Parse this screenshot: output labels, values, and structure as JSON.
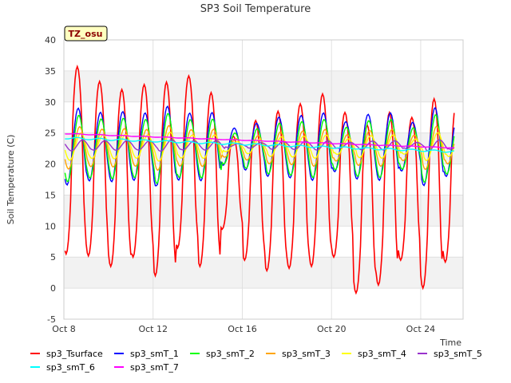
{
  "chart_data": {
    "type": "line",
    "title": "SP3 Soil Temperature",
    "xlabel": "Time",
    "ylabel": "Soil Temperature (C)",
    "ylim": [
      -5,
      40
    ],
    "xlim_days": [
      0,
      17.9
    ],
    "yticks": [
      -5,
      0,
      5,
      10,
      15,
      20,
      25,
      30,
      35,
      40
    ],
    "xticks": [
      {
        "day": 0,
        "label": "Oct 8"
      },
      {
        "day": 4,
        "label": "Oct 12"
      },
      {
        "day": 8,
        "label": "Oct 16"
      },
      {
        "day": 12,
        "label": "Oct 20"
      },
      {
        "day": 16,
        "label": "Oct 24"
      }
    ],
    "badge": "TZ_osu",
    "grid": true,
    "legend_position": "bottom",
    "day_range": [
      0.05,
      17.5
    ],
    "sample_step_days": 0.05,
    "daily_min": [
      5.5,
      5.2,
      3.5,
      5.0,
      2.0,
      6.5,
      3.5,
      9.5,
      4.5,
      2.8,
      3.2,
      3.5,
      5.0,
      -0.8,
      0.5,
      4.5,
      0.0,
      4.2
    ],
    "daily_max": [
      35.7,
      33.3,
      32.0,
      32.8,
      33.2,
      34.2,
      31.5,
      24.5,
      27.0,
      28.5,
      29.7,
      31.3,
      28.3,
      26.3,
      28.3,
      27.5,
      30.5,
      30.0
    ],
    "series": [
      {
        "name": "sp3_Tsurface",
        "color": "#ff0000",
        "kind": "surface"
      },
      {
        "name": "sp3_smT_1",
        "color": "#0000ff",
        "kind": "soil",
        "base": 22.8,
        "amp_min": 3.0,
        "amp_max": 8.0,
        "floor": 16.5,
        "top": 31.0,
        "lag": 0.02
      },
      {
        "name": "sp3_smT_2",
        "color": "#00ff00",
        "kind": "soil",
        "base": 22.5,
        "amp_min": 2.5,
        "amp_max": 7.0,
        "floor": 15.5,
        "top": 30.0,
        "lag": 0.05
      },
      {
        "name": "sp3_smT_3",
        "color": "#ffa500",
        "kind": "soil",
        "base": 22.6,
        "amp_min": 1.5,
        "amp_max": 4.5,
        "floor": 17.0,
        "top": 28.0,
        "lag": 0.09
      },
      {
        "name": "sp3_smT_4",
        "color": "#ffff00",
        "kind": "soil",
        "base": 22.8,
        "amp_min": 0.8,
        "amp_max": 3.0,
        "floor": 18.5,
        "top": 27.0,
        "lag": 0.14
      },
      {
        "name": "sp3_smT_5",
        "color": "#9932cc",
        "kind": "soil",
        "base": 23.0,
        "amp_min": 0.3,
        "amp_max": 1.2,
        "floor": 20.0,
        "top": 25.0,
        "lag": 0.22
      },
      {
        "name": "sp3_smT_6",
        "color": "#00ffff",
        "kind": "trend",
        "start": 24.2,
        "end": 22.0,
        "ripple": 0.15
      },
      {
        "name": "sp3_smT_7",
        "color": "#ff00ff",
        "kind": "trend",
        "start": 24.9,
        "end": 22.6,
        "ripple": 0.05
      }
    ]
  }
}
